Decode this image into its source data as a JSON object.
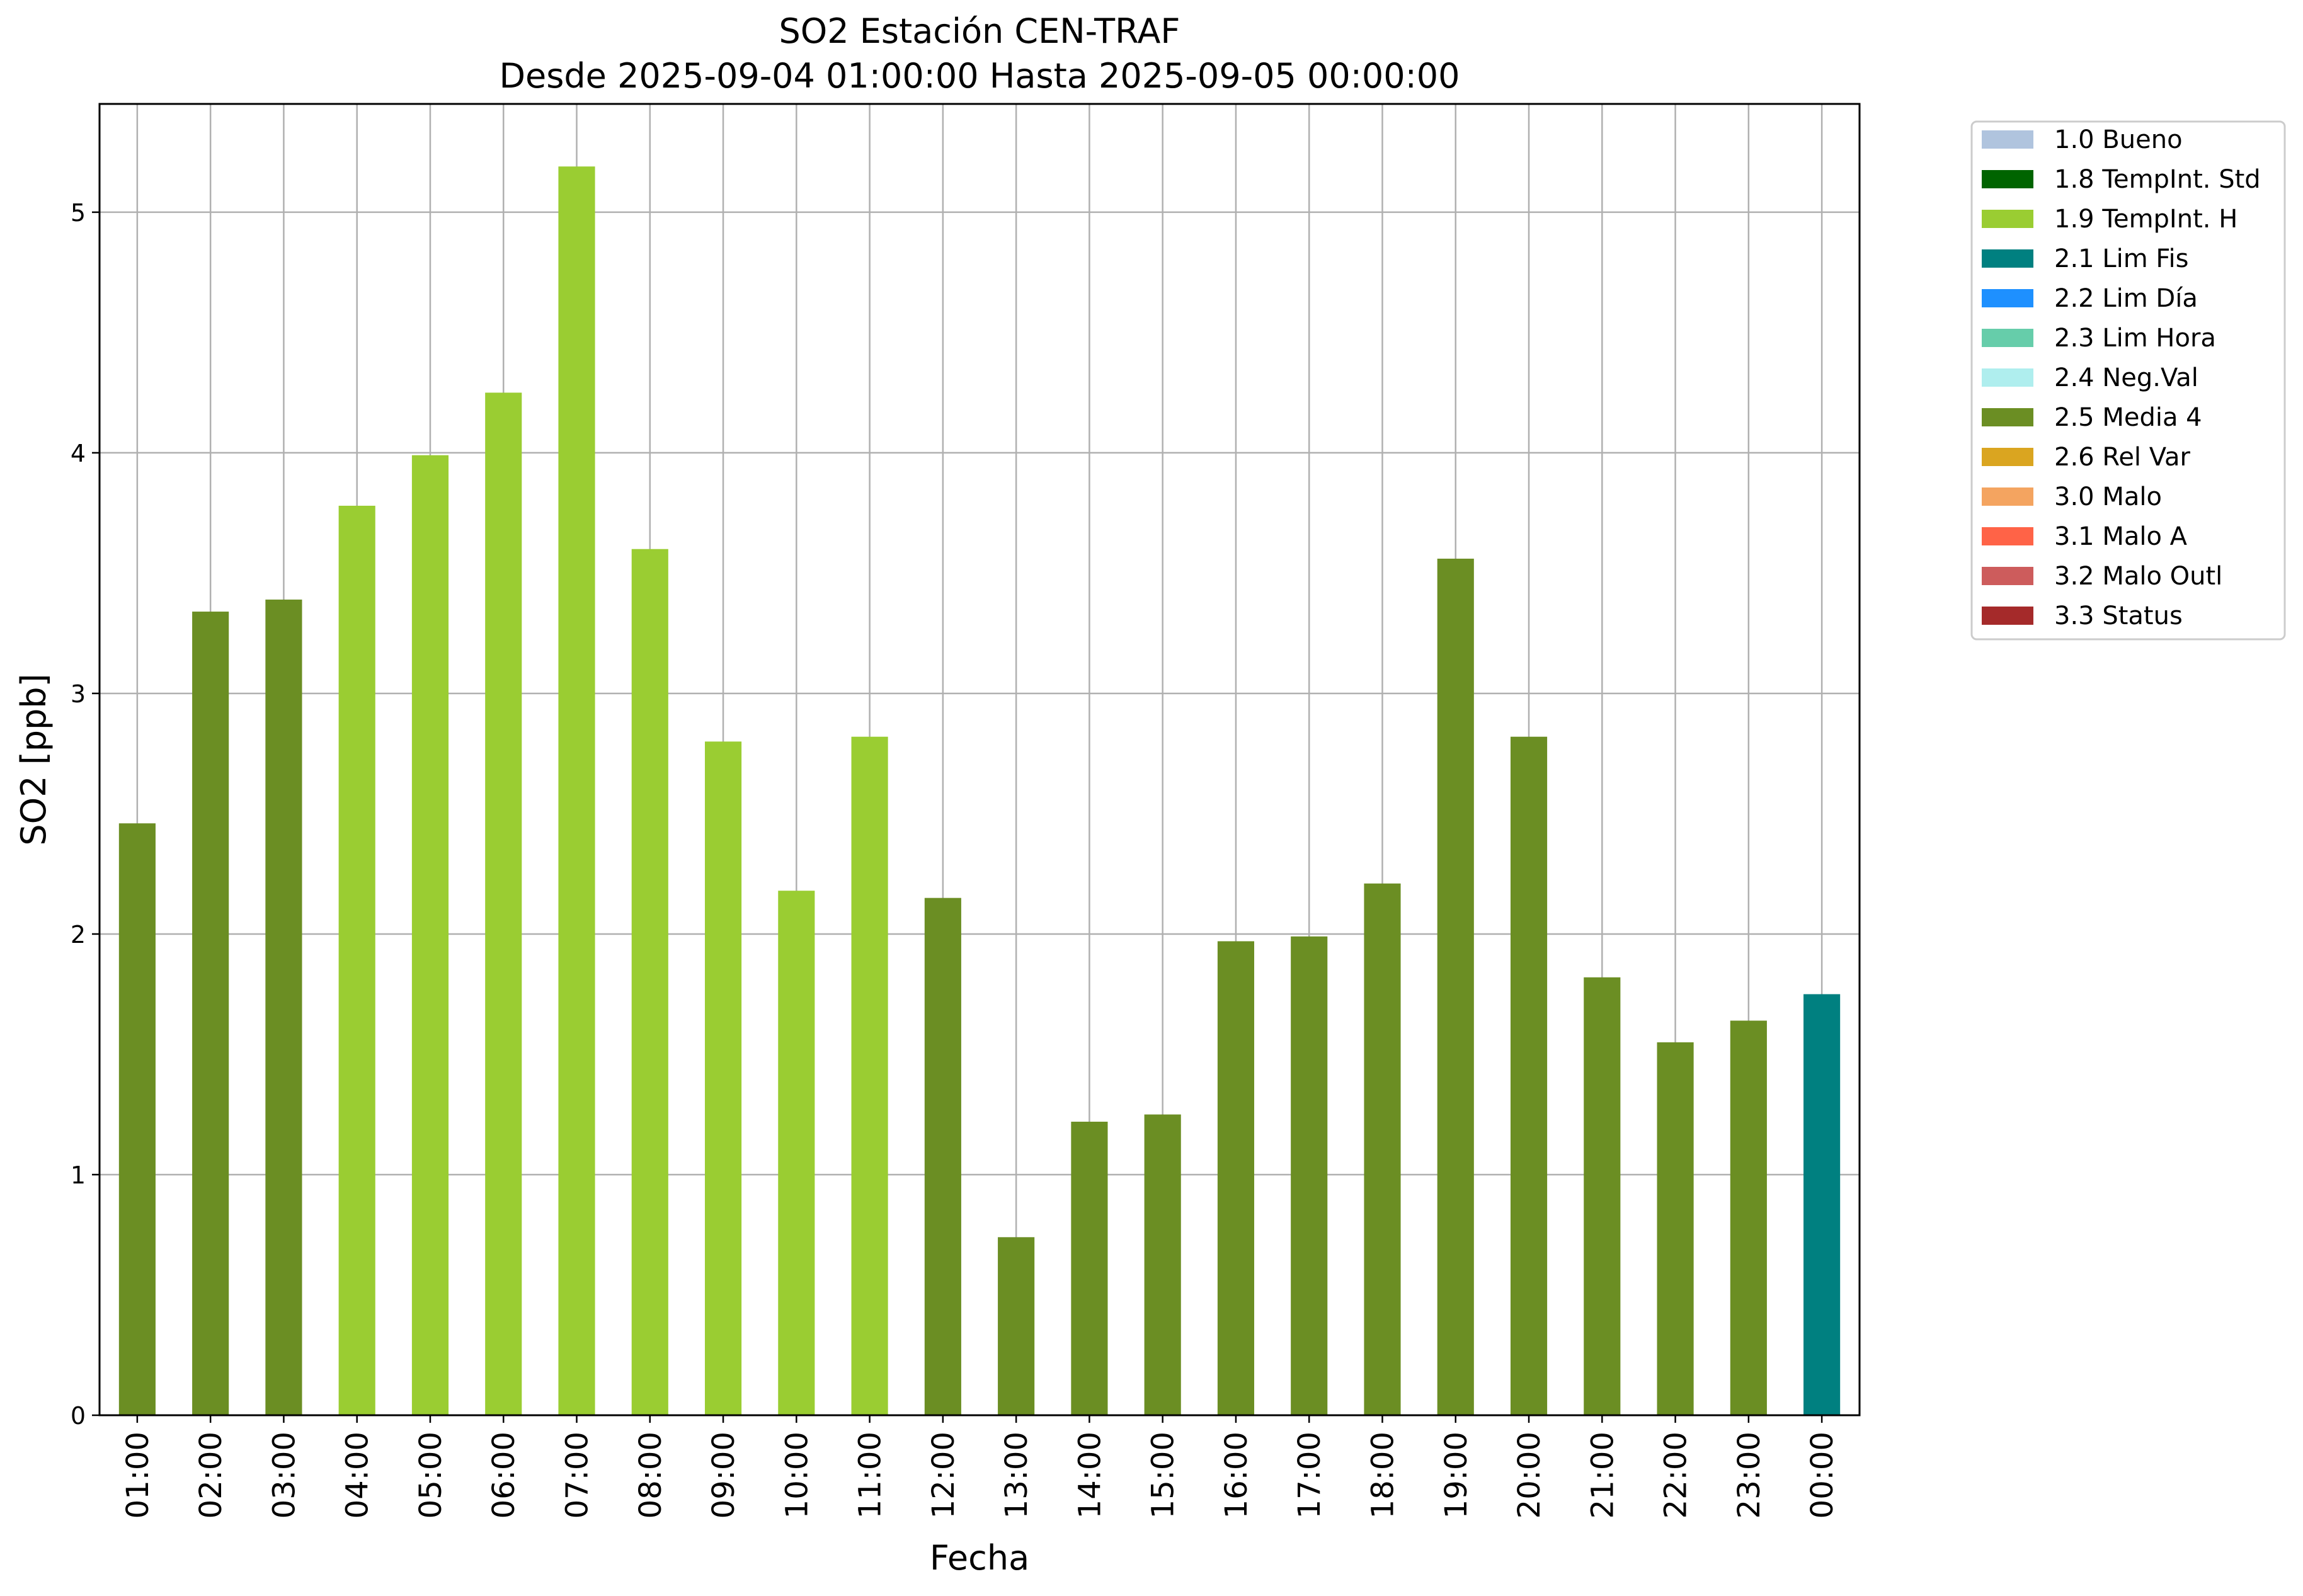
{
  "chart_data": {
    "type": "bar",
    "title": "SO2 Estación CEN-TRAF",
    "subtitle": "Desde 2025-09-04 01:00:00 Hasta 2025-09-05 00:00:00",
    "xlabel": "Fecha",
    "ylabel": "SO2 [ppb]",
    "ylim": [
      0,
      5.45
    ],
    "yticks": [
      "0",
      "1",
      "2",
      "3",
      "4",
      "5"
    ],
    "grid": true,
    "legend_position": "outside-right",
    "categories": [
      "01:00",
      "02:00",
      "03:00",
      "04:00",
      "05:00",
      "06:00",
      "07:00",
      "08:00",
      "09:00",
      "10:00",
      "11:00",
      "12:00",
      "13:00",
      "14:00",
      "15:00",
      "16:00",
      "17:00",
      "18:00",
      "19:00",
      "20:00",
      "21:00",
      "22:00",
      "23:00",
      "00:00"
    ],
    "values": [
      2.46,
      3.34,
      3.39,
      3.78,
      3.99,
      4.25,
      5.19,
      3.6,
      2.8,
      2.18,
      2.82,
      2.15,
      0.74,
      1.22,
      1.25,
      1.97,
      1.99,
      2.21,
      3.56,
      2.82,
      1.82,
      1.55,
      1.64,
      1.75
    ],
    "flags": [
      "2.5 Media 4",
      "2.5 Media 4",
      "2.5 Media 4",
      "1.9 TempInt. H",
      "1.9 TempInt. H",
      "1.9 TempInt. H",
      "1.9 TempInt. H",
      "1.9 TempInt. H",
      "1.9 TempInt. H",
      "1.9 TempInt. H",
      "1.9 TempInt. H",
      "2.5 Media 4",
      "2.5 Media 4",
      "2.5 Media 4",
      "2.5 Media 4",
      "2.5 Media 4",
      "2.5 Media 4",
      "2.5 Media 4",
      "2.5 Media 4",
      "2.5 Media 4",
      "2.5 Media 4",
      "2.5 Media 4",
      "2.5 Media 4",
      "2.1 Lim Fis"
    ],
    "legend": [
      {
        "label": "1.0 Bueno",
        "color": "#b0c4de"
      },
      {
        "label": "1.8 TempInt. Std",
        "color": "#006400"
      },
      {
        "label": "1.9 TempInt. H",
        "color": "#9acd32"
      },
      {
        "label": "2.1 Lim Fis",
        "color": "#008080"
      },
      {
        "label": "2.2 Lim Día",
        "color": "#1e90ff"
      },
      {
        "label": "2.3 Lim Hora",
        "color": "#66cdaa"
      },
      {
        "label": "2.4 Neg.Val",
        "color": "#afeeee"
      },
      {
        "label": "2.5 Media 4",
        "color": "#6b8e23"
      },
      {
        "label": "2.6 Rel Var",
        "color": "#daa520"
      },
      {
        "label": "3.0 Malo",
        "color": "#f4a460"
      },
      {
        "label": "3.1 Malo A",
        "color": "#ff6347"
      },
      {
        "label": "3.2 Malo Outl",
        "color": "#cd5c5c"
      },
      {
        "label": "3.3 Status",
        "color": "#a52a2a"
      }
    ]
  }
}
